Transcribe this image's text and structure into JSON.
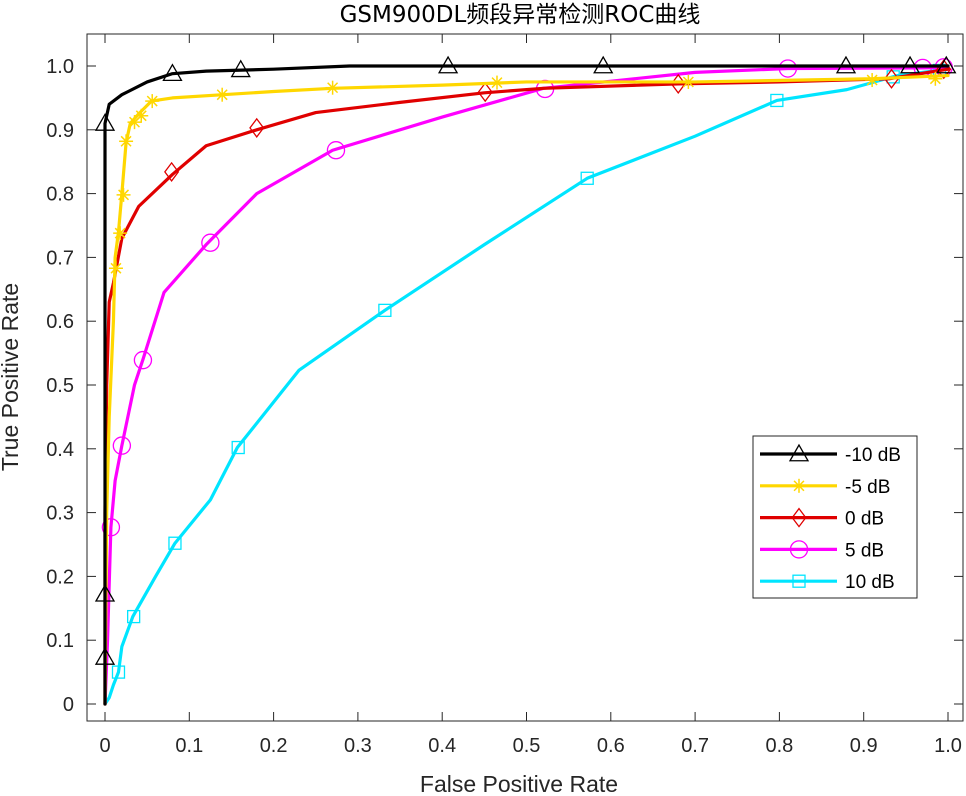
{
  "chart_data": {
    "type": "line",
    "title": "GSM900DL频段异常检测ROC曲线",
    "xlabel": "False Positive Rate",
    "ylabel": "True Positive Rate",
    "xlim": [
      0,
      1
    ],
    "ylim": [
      0,
      1
    ],
    "xticks": [
      0,
      0.1,
      0.2,
      0.3,
      0.4,
      0.5,
      0.6,
      0.7,
      0.8,
      0.9,
      1.0
    ],
    "xtick_labels": [
      "0",
      "0.1",
      "0.2",
      "0.3",
      "0.4",
      "0.5",
      "0.6",
      "0.7",
      "0.8",
      "0.9",
      "1.0"
    ],
    "yticks": [
      0,
      0.1,
      0.2,
      0.3,
      0.4,
      0.5,
      0.6,
      0.7,
      0.8,
      0.9,
      1.0
    ],
    "ytick_labels": [
      "0",
      "0.1",
      "0.2",
      "0.3",
      "0.4",
      "0.5",
      "0.6",
      "0.7",
      "0.8",
      "0.9",
      "1.0"
    ],
    "grid": false,
    "legend_position": "center-right",
    "series": [
      {
        "name": "-10 dB",
        "color": "#000000",
        "marker": "triangle",
        "points": [
          [
            0,
            0
          ],
          [
            0,
            0.3
          ],
          [
            0,
            0.91
          ],
          [
            0.005,
            0.94
          ],
          [
            0.02,
            0.955
          ],
          [
            0.05,
            0.975
          ],
          [
            0.08,
            0.988
          ],
          [
            0.12,
            0.992
          ],
          [
            0.2,
            0.995
          ],
          [
            0.29,
            1.0
          ],
          [
            0.4,
            1.0
          ],
          [
            0.6,
            1.0
          ],
          [
            0.8,
            1.0
          ],
          [
            1.0,
            1.0
          ]
        ],
        "markers": [
          [
            0,
            0.073
          ],
          [
            0,
            0.172
          ],
          [
            0,
            0.91
          ],
          [
            0.08,
            0.988
          ],
          [
            0.161,
            0.994
          ],
          [
            0.407,
            1.0
          ],
          [
            0.591,
            1.0
          ],
          [
            0.879,
            1.0
          ],
          [
            0.955,
            1.0
          ],
          [
            0.998,
            1.0
          ]
        ]
      },
      {
        "name": "-5 dB",
        "color": "#ffd700",
        "marker": "asterisk",
        "points": [
          [
            0,
            0
          ],
          [
            0.002,
            0.3
          ],
          [
            0.005,
            0.45
          ],
          [
            0.01,
            0.6
          ],
          [
            0.012,
            0.7
          ],
          [
            0.016,
            0.74
          ],
          [
            0.02,
            0.8
          ],
          [
            0.025,
            0.88
          ],
          [
            0.03,
            0.91
          ],
          [
            0.04,
            0.925
          ],
          [
            0.055,
            0.945
          ],
          [
            0.08,
            0.95
          ],
          [
            0.14,
            0.955
          ],
          [
            0.2,
            0.96
          ],
          [
            0.27,
            0.965
          ],
          [
            0.4,
            0.97
          ],
          [
            0.5,
            0.975
          ],
          [
            0.7,
            0.975
          ],
          [
            0.91,
            0.98
          ],
          [
            1.0,
            0.985
          ]
        ],
        "markers": [
          [
            0.013,
            0.683
          ],
          [
            0.018,
            0.738
          ],
          [
            0.022,
            0.798
          ],
          [
            0.025,
            0.882
          ],
          [
            0.035,
            0.912
          ],
          [
            0.043,
            0.922
          ],
          [
            0.056,
            0.945
          ],
          [
            0.139,
            0.955
          ],
          [
            0.27,
            0.966
          ],
          [
            0.465,
            0.974
          ],
          [
            0.692,
            0.975
          ],
          [
            0.91,
            0.978
          ],
          [
            0.985,
            0.98
          ]
        ]
      },
      {
        "name": "0 dB",
        "color": "#e00000",
        "marker": "diamond",
        "points": [
          [
            0,
            0
          ],
          [
            0,
            0.3
          ],
          [
            0.002,
            0.5
          ],
          [
            0.005,
            0.63
          ],
          [
            0.01,
            0.66
          ],
          [
            0.02,
            0.73
          ],
          [
            0.04,
            0.78
          ],
          [
            0.08,
            0.83
          ],
          [
            0.12,
            0.875
          ],
          [
            0.18,
            0.9
          ],
          [
            0.25,
            0.927
          ],
          [
            0.35,
            0.943
          ],
          [
            0.45,
            0.958
          ],
          [
            0.52,
            0.965
          ],
          [
            0.68,
            0.972
          ],
          [
            0.8,
            0.975
          ],
          [
            0.93,
            0.98
          ],
          [
            1.0,
            0.995
          ]
        ],
        "markers": [
          [
            0.079,
            0.834
          ],
          [
            0.18,
            0.903
          ],
          [
            0.451,
            0.959
          ],
          [
            0.68,
            0.972
          ],
          [
            0.933,
            0.98
          ],
          [
            0.995,
            0.995
          ]
        ]
      },
      {
        "name": "5 dB",
        "color": "#ff00ff",
        "marker": "circle",
        "points": [
          [
            0,
            0
          ],
          [
            0.003,
            0.1
          ],
          [
            0.007,
            0.277
          ],
          [
            0.012,
            0.35
          ],
          [
            0.02,
            0.405
          ],
          [
            0.035,
            0.5
          ],
          [
            0.045,
            0.54
          ],
          [
            0.07,
            0.645
          ],
          [
            0.12,
            0.72
          ],
          [
            0.18,
            0.8
          ],
          [
            0.27,
            0.868
          ],
          [
            0.4,
            0.92
          ],
          [
            0.52,
            0.965
          ],
          [
            0.7,
            0.99
          ],
          [
            0.81,
            0.996
          ],
          [
            0.97,
            0.997
          ],
          [
            1.0,
            0.998
          ]
        ],
        "markers": [
          [
            0.007,
            0.277
          ],
          [
            0.02,
            0.405
          ],
          [
            0.045,
            0.539
          ],
          [
            0.125,
            0.723
          ],
          [
            0.274,
            0.868
          ],
          [
            0.522,
            0.964
          ],
          [
            0.81,
            0.996
          ],
          [
            0.97,
            0.997
          ],
          [
            0.995,
            0.998
          ]
        ]
      },
      {
        "name": "10 dB",
        "color": "#00e5ff",
        "marker": "square",
        "points": [
          [
            0,
            0
          ],
          [
            0.005,
            0.01
          ],
          [
            0.01,
            0.03
          ],
          [
            0.016,
            0.05
          ],
          [
            0.02,
            0.09
          ],
          [
            0.033,
            0.137
          ],
          [
            0.06,
            0.2
          ],
          [
            0.083,
            0.252
          ],
          [
            0.125,
            0.32
          ],
          [
            0.157,
            0.402
          ],
          [
            0.23,
            0.523
          ],
          [
            0.332,
            0.617
          ],
          [
            0.45,
            0.72
          ],
          [
            0.572,
            0.824
          ],
          [
            0.7,
            0.89
          ],
          [
            0.797,
            0.946
          ],
          [
            0.88,
            0.963
          ],
          [
            0.94,
            0.985
          ],
          [
            1.0,
            0.995
          ]
        ],
        "markers": [
          [
            0.016,
            0.05
          ],
          [
            0.034,
            0.137
          ],
          [
            0.083,
            0.252
          ],
          [
            0.158,
            0.402
          ],
          [
            0.332,
            0.617
          ],
          [
            0.572,
            0.824
          ],
          [
            0.797,
            0.946
          ],
          [
            0.935,
            0.983
          ],
          [
            0.99,
            0.993
          ]
        ]
      }
    ]
  }
}
